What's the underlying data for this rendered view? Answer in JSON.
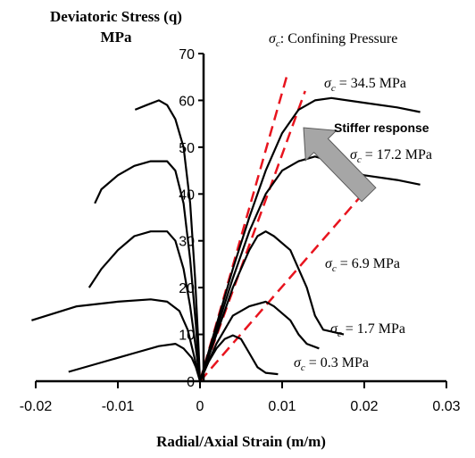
{
  "chart_data": {
    "type": "line",
    "ylabel_line1": "Deviatoric Stress (q)",
    "ylabel_line2": "MPa",
    "xlabel": "Radial/Axial Strain (m/m)",
    "legend_title": "Confining Pressure",
    "xlim": [
      -0.02,
      0.03
    ],
    "ylim": [
      0,
      70
    ],
    "x_ticks": [
      "-0.02",
      "-0.01",
      "0",
      "0.01",
      "0.02",
      "0.03"
    ],
    "x_tick_values": [
      -0.02,
      -0.01,
      0,
      0.01,
      0.02,
      0.03
    ],
    "y_ticks": [
      "0",
      "10",
      "20",
      "30",
      "40",
      "50",
      "60",
      "70"
    ],
    "y_tick_values": [
      0,
      10,
      20,
      30,
      40,
      50,
      60,
      70
    ],
    "annotation": "Stiffer response",
    "annotation_color": "#e8141e",
    "curve_color": "#000000",
    "guide_color": "#e8141e",
    "arrow_color": "#a6a6a6",
    "series": [
      {
        "label_prefix": "σc",
        "label_value": "= 34.5 MPa",
        "radial": [
          [
            -0.0079,
            58
          ],
          [
            -0.0065,
            59
          ],
          [
            -0.005,
            60
          ],
          [
            -0.004,
            59
          ],
          [
            -0.003,
            56
          ],
          [
            -0.002,
            50
          ],
          [
            -0.0012,
            38
          ],
          [
            -0.0006,
            22
          ],
          [
            -0.0002,
            8
          ],
          [
            0,
            0
          ]
        ],
        "axial": [
          [
            0,
            0
          ],
          [
            0.002,
            12
          ],
          [
            0.004,
            24
          ],
          [
            0.006,
            35
          ],
          [
            0.008,
            45
          ],
          [
            0.01,
            53
          ],
          [
            0.012,
            58
          ],
          [
            0.014,
            60
          ],
          [
            0.016,
            60.5
          ],
          [
            0.02,
            59.5
          ],
          [
            0.024,
            58.5
          ],
          [
            0.0268,
            57.5
          ]
        ]
      },
      {
        "label_prefix": "σc",
        "label_value": "= 17.2 MPa",
        "radial": [
          [
            -0.0128,
            38
          ],
          [
            -0.012,
            41
          ],
          [
            -0.01,
            44
          ],
          [
            -0.008,
            46
          ],
          [
            -0.006,
            47
          ],
          [
            -0.004,
            47
          ],
          [
            -0.003,
            45
          ],
          [
            -0.002,
            38
          ],
          [
            -0.0012,
            26
          ],
          [
            -0.0005,
            12
          ],
          [
            0,
            0
          ]
        ],
        "axial": [
          [
            0,
            0
          ],
          [
            0.002,
            11
          ],
          [
            0.004,
            22
          ],
          [
            0.006,
            32
          ],
          [
            0.008,
            40
          ],
          [
            0.01,
            45
          ],
          [
            0.012,
            47
          ],
          [
            0.014,
            48
          ],
          [
            0.016,
            47
          ],
          [
            0.018,
            45
          ],
          [
            0.02,
            44
          ],
          [
            0.024,
            43
          ],
          [
            0.0268,
            42
          ]
        ]
      },
      {
        "label_prefix": "σc",
        "label_value": "= 6.9 MPa",
        "radial": [
          [
            -0.0135,
            20
          ],
          [
            -0.012,
            24
          ],
          [
            -0.01,
            28
          ],
          [
            -0.008,
            31
          ],
          [
            -0.006,
            32
          ],
          [
            -0.004,
            32
          ],
          [
            -0.003,
            30
          ],
          [
            -0.002,
            24
          ],
          [
            -0.0012,
            16
          ],
          [
            -0.0005,
            7
          ],
          [
            0,
            0
          ]
        ],
        "axial": [
          [
            0,
            0
          ],
          [
            0.002,
            10
          ],
          [
            0.004,
            20
          ],
          [
            0.006,
            28
          ],
          [
            0.007,
            31
          ],
          [
            0.008,
            32
          ],
          [
            0.009,
            31
          ],
          [
            0.011,
            28
          ],
          [
            0.013,
            20
          ],
          [
            0.014,
            14
          ],
          [
            0.015,
            11
          ],
          [
            0.0175,
            10
          ]
        ]
      },
      {
        "label_prefix": "σc",
        "label_value": "= 1.7 MPa",
        "radial": [
          [
            -0.0205,
            13
          ],
          [
            -0.015,
            16
          ],
          [
            -0.01,
            17
          ],
          [
            -0.006,
            17.5
          ],
          [
            -0.004,
            17
          ],
          [
            -0.0025,
            15
          ],
          [
            -0.0015,
            11
          ],
          [
            -0.0008,
            6
          ],
          [
            0,
            0
          ]
        ],
        "axial": [
          [
            0,
            0
          ],
          [
            0.002,
            8
          ],
          [
            0.004,
            14
          ],
          [
            0.006,
            16
          ],
          [
            0.008,
            17
          ],
          [
            0.009,
            16
          ],
          [
            0.011,
            13
          ],
          [
            0.012,
            10
          ],
          [
            0.013,
            8
          ],
          [
            0.0145,
            7
          ]
        ]
      },
      {
        "label_prefix": "σc",
        "label_value": "= 0.3 MPa",
        "radial": [
          [
            -0.016,
            2
          ],
          [
            -0.012,
            4
          ],
          [
            -0.008,
            6
          ],
          [
            -0.005,
            7.5
          ],
          [
            -0.003,
            8
          ],
          [
            -0.002,
            7
          ],
          [
            -0.001,
            5
          ],
          [
            -0.0005,
            3
          ],
          [
            0,
            0
          ]
        ],
        "axial": [
          [
            0,
            0
          ],
          [
            0.001,
            4
          ],
          [
            0.002,
            7
          ],
          [
            0.003,
            9
          ],
          [
            0.004,
            9.8
          ],
          [
            0.005,
            9
          ],
          [
            0.006,
            6
          ],
          [
            0.007,
            3
          ],
          [
            0.008,
            1.8
          ],
          [
            0.0095,
            1.5
          ]
        ]
      }
    ],
    "guides": [
      [
        [
          0,
          0
        ],
        [
          0.0107,
          66
        ]
      ],
      [
        [
          0,
          0
        ],
        [
          0.0128,
          62
        ]
      ],
      [
        [
          0,
          0
        ],
        [
          0.0198,
          40
        ]
      ]
    ]
  }
}
